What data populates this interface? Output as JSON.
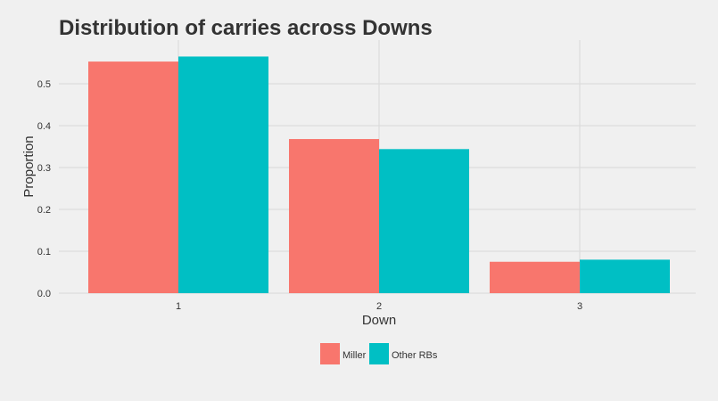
{
  "chart_data": {
    "type": "bar",
    "title": "Distribution of carries across Downs",
    "xlabel": "Down",
    "ylabel": "Proportion",
    "categories": [
      "1",
      "2",
      "3"
    ],
    "series": [
      {
        "name": "Miller",
        "color": "#f8766d",
        "values": [
          0.553,
          0.368,
          0.075
        ]
      },
      {
        "name": "Other RBs",
        "color": "#00bfc4",
        "values": [
          0.565,
          0.344,
          0.08
        ]
      }
    ],
    "ylim": [
      0,
      0.6
    ],
    "yticks": [
      "0.0",
      "0.1",
      "0.2",
      "0.3",
      "0.4",
      "0.5"
    ],
    "grid": true,
    "legend_position": "bottom"
  },
  "colors": {
    "background": "#f0f0f0",
    "grid": "#d9d9d9",
    "text": "#333333"
  }
}
